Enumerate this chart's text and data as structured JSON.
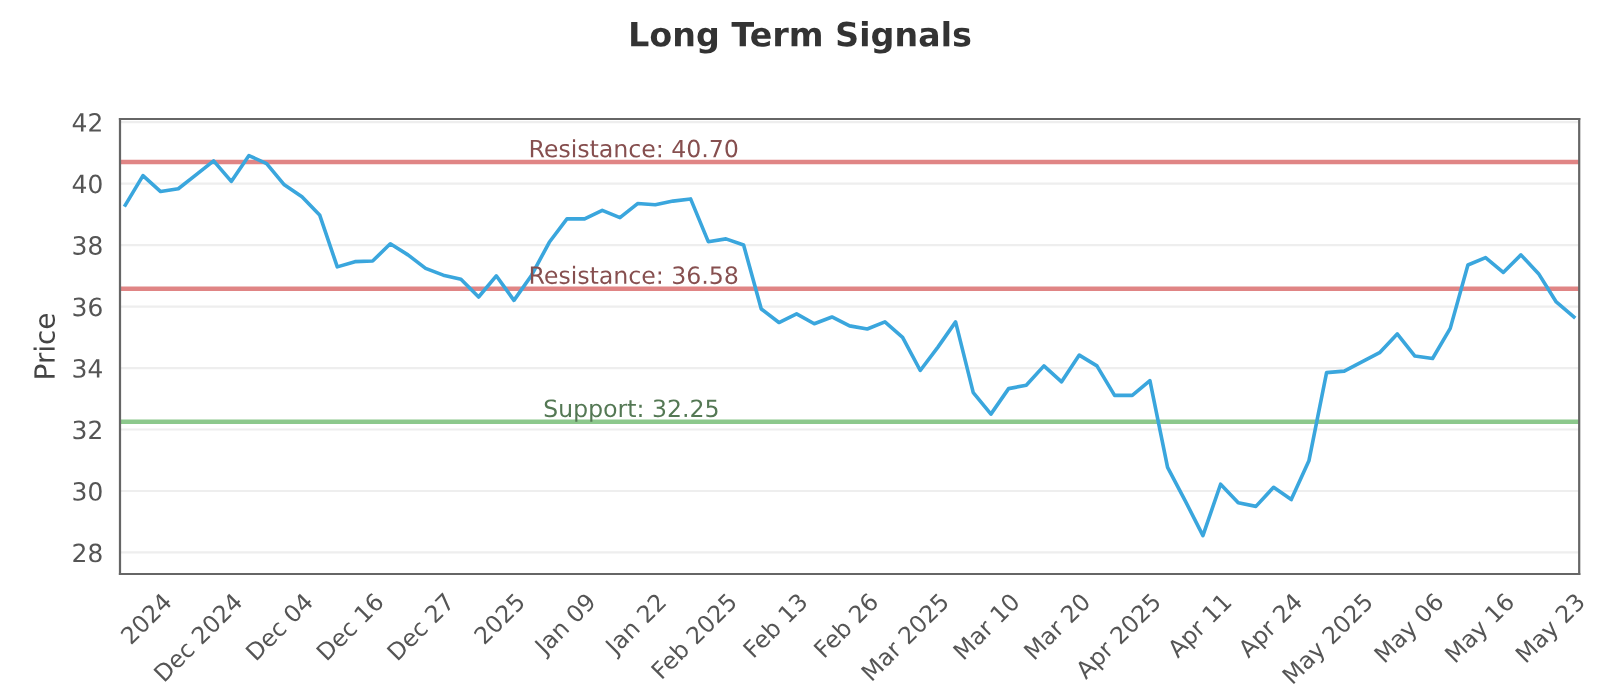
{
  "chart_data": {
    "type": "line",
    "title": "Long Term Signals",
    "ylabel": "Price",
    "categories": [
      null,
      null,
      "2024",
      null,
      null,
      null,
      "Dec 2024",
      null,
      null,
      null,
      "Dec 04",
      null,
      null,
      null,
      "Dec 16",
      null,
      null,
      null,
      "Dec 27",
      null,
      null,
      null,
      "2025",
      null,
      null,
      null,
      "Jan 09",
      null,
      null,
      null,
      "Jan 22",
      null,
      null,
      null,
      "Feb 2025",
      null,
      null,
      null,
      "Feb 13",
      null,
      null,
      null,
      "Feb 26",
      null,
      null,
      null,
      "Mar 2025",
      null,
      null,
      null,
      "Mar 10",
      null,
      null,
      null,
      "Mar 20",
      null,
      null,
      null,
      "Apr 2025",
      null,
      null,
      null,
      "Apr 11",
      null,
      null,
      null,
      "Apr 24",
      null,
      null,
      null,
      "May 2025",
      null,
      null,
      null,
      "May 06",
      null,
      null,
      null,
      "May 16",
      null,
      null,
      null,
      "May 23"
    ],
    "series": [
      {
        "color": "#3aa6dd",
        "values": [
          39.3,
          40.26,
          39.74,
          39.83,
          40.28,
          40.74,
          40.07,
          40.91,
          40.65,
          39.96,
          39.57,
          38.98,
          37.29,
          37.46,
          37.48,
          38.04,
          37.68,
          37.24,
          37.02,
          36.89,
          36.31,
          37.0,
          36.2,
          37.02,
          38.09,
          38.85,
          38.85,
          39.13,
          38.89,
          39.35,
          39.31,
          39.43,
          39.5,
          38.11,
          38.2,
          38.0,
          35.92,
          35.48,
          35.76,
          35.44,
          35.66,
          35.37,
          35.27,
          35.5,
          35.0,
          33.92,
          34.68,
          35.5,
          33.2,
          32.5,
          33.33,
          33.44,
          34.07,
          33.55,
          34.42,
          34.07,
          33.11,
          33.11,
          33.59,
          30.77,
          29.68,
          28.55,
          30.22,
          29.62,
          29.5,
          30.12,
          29.72,
          30.98,
          33.85,
          33.9,
          34.2,
          34.5,
          35.11,
          34.39,
          34.31,
          35.29,
          37.35,
          37.59,
          37.11,
          37.68,
          37.07,
          36.15,
          35.66
        ]
      }
    ],
    "ylim": [
      27.3,
      42.1
    ],
    "yticks": [
      28,
      30,
      32,
      34,
      36,
      38,
      40,
      42
    ],
    "grid": "y",
    "ref_lines": [
      {
        "axis": "y",
        "value": 40.7,
        "label": "Resistance: 40.70",
        "color": "#e08585"
      },
      {
        "axis": "y",
        "value": 36.58,
        "label": "Resistance: 36.58",
        "color": "#e08585"
      },
      {
        "axis": "y",
        "value": 32.25,
        "label": "Support: 32.25",
        "color": "#8cc88c"
      }
    ]
  }
}
